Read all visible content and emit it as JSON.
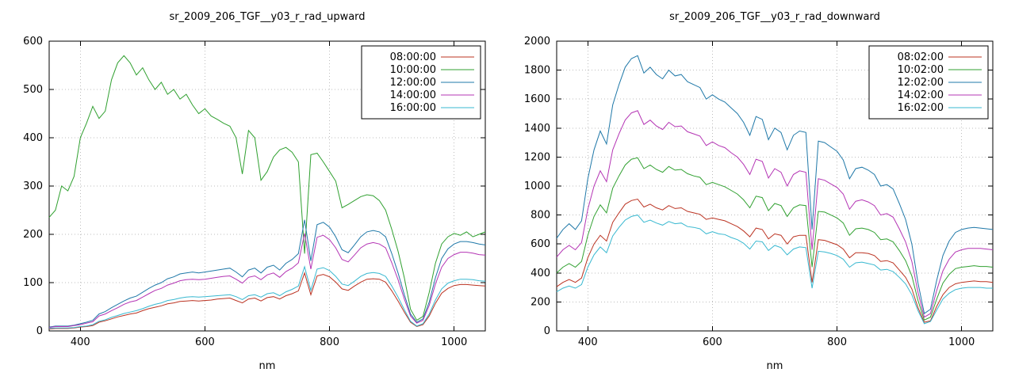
{
  "page": {
    "background_color": "#ffffff"
  },
  "chart_data": [
    {
      "type": "line",
      "title": "sr_2009_206_TGF__y03_r_rad_upward",
      "xlabel": "nm",
      "ylabel": "",
      "xlim": [
        350,
        1050
      ],
      "ylim": [
        0,
        600
      ],
      "xticks": [
        400,
        600,
        800,
        1000
      ],
      "yticks": [
        0,
        100,
        200,
        300,
        400,
        500,
        600
      ],
      "grid": true,
      "legend_position": "top-right",
      "x": [
        350,
        360,
        370,
        380,
        390,
        400,
        410,
        420,
        430,
        440,
        450,
        460,
        470,
        480,
        490,
        500,
        510,
        520,
        530,
        540,
        550,
        560,
        570,
        580,
        590,
        600,
        610,
        620,
        630,
        640,
        650,
        660,
        670,
        680,
        690,
        700,
        710,
        720,
        730,
        740,
        750,
        760,
        770,
        780,
        790,
        800,
        810,
        820,
        830,
        840,
        850,
        860,
        870,
        880,
        890,
        900,
        910,
        920,
        930,
        940,
        950,
        960,
        970,
        980,
        990,
        1000,
        1010,
        1020,
        1030,
        1040,
        1050
      ],
      "series": [
        {
          "name": "08:00:00",
          "color": "#bb3322",
          "values": [
            4,
            5,
            5,
            5,
            6,
            8,
            9,
            11,
            18,
            21,
            25,
            29,
            32,
            35,
            37,
            42,
            46,
            49,
            52,
            56,
            58,
            61,
            62,
            63,
            62,
            63,
            64,
            66,
            67,
            68,
            63,
            58,
            66,
            68,
            62,
            69,
            71,
            66,
            73,
            77,
            83,
            120,
            75,
            114,
            117,
            112,
            101,
            87,
            84,
            93,
            101,
            107,
            108,
            107,
            101,
            83,
            62,
            39,
            18,
            9,
            13,
            31,
            57,
            78,
            88,
            94,
            96,
            96,
            95,
            94,
            93
          ]
        },
        {
          "name": "10:00:00",
          "color": "#30a030",
          "values": [
            235,
            250,
            300,
            290,
            320,
            400,
            430,
            465,
            440,
            455,
            520,
            555,
            570,
            555,
            530,
            545,
            520,
            500,
            515,
            490,
            500,
            480,
            490,
            468,
            450,
            460,
            445,
            438,
            430,
            424,
            400,
            325,
            415,
            400,
            312,
            330,
            360,
            375,
            380,
            370,
            350,
            160,
            365,
            368,
            350,
            330,
            310,
            255,
            262,
            270,
            278,
            282,
            280,
            270,
            250,
            210,
            165,
            110,
            45,
            22,
            30,
            80,
            140,
            180,
            195,
            202,
            198,
            205,
            195,
            200,
            205
          ]
        },
        {
          "name": "12:00:00",
          "color": "#1f78a8",
          "values": [
            8,
            10,
            10,
            10,
            12,
            15,
            18,
            22,
            35,
            40,
            48,
            55,
            62,
            68,
            72,
            80,
            88,
            95,
            100,
            108,
            112,
            118,
            120,
            122,
            120,
            122,
            124,
            126,
            128,
            130,
            122,
            112,
            126,
            130,
            120,
            132,
            136,
            126,
            140,
            148,
            160,
            230,
            145,
            220,
            225,
            215,
            195,
            168,
            162,
            178,
            195,
            205,
            208,
            205,
            195,
            160,
            120,
            75,
            35,
            18,
            25,
            60,
            110,
            150,
            170,
            180,
            185,
            185,
            183,
            180,
            178
          ]
        },
        {
          "name": "14:00:00",
          "color": "#b434b4",
          "values": [
            7,
            9,
            9,
            9,
            11,
            13,
            16,
            19,
            31,
            35,
            42,
            48,
            55,
            60,
            63,
            70,
            77,
            84,
            88,
            95,
            99,
            104,
            106,
            107,
            106,
            107,
            109,
            111,
            113,
            114,
            107,
            99,
            111,
            114,
            106,
            116,
            120,
            111,
            123,
            130,
            141,
            202,
            128,
            194,
            198,
            189,
            172,
            148,
            143,
            157,
            172,
            180,
            183,
            180,
            172,
            141,
            106,
            66,
            31,
            16,
            22,
            53,
            97,
            132,
            150,
            158,
            163,
            163,
            161,
            158,
            157
          ]
        },
        {
          "name": "16:00:00",
          "color": "#38b8d0",
          "values": [
            5,
            6,
            6,
            6,
            7,
            9,
            10,
            13,
            20,
            23,
            28,
            32,
            36,
            39,
            42,
            46,
            51,
            55,
            58,
            63,
            65,
            68,
            70,
            71,
            70,
            71,
            72,
            73,
            74,
            75,
            71,
            65,
            73,
            75,
            70,
            77,
            79,
            73,
            81,
            86,
            93,
            133,
            84,
            128,
            131,
            125,
            113,
            97,
            94,
            103,
            113,
            119,
            121,
            119,
            113,
            93,
            70,
            44,
            20,
            10,
            15,
            35,
            64,
            87,
            99,
            104,
            107,
            107,
            106,
            104,
            103
          ]
        }
      ]
    },
    {
      "type": "line",
      "title": "sr_2009_206_TGF__y03_r_rad_downward",
      "xlabel": "nm",
      "ylabel": "",
      "xlim": [
        350,
        1050
      ],
      "ylim": [
        0,
        2000
      ],
      "xticks": [
        400,
        600,
        800,
        1000
      ],
      "yticks": [
        0,
        200,
        400,
        600,
        800,
        1000,
        1200,
        1400,
        1600,
        1800,
        2000
      ],
      "grid": true,
      "legend_position": "top-right",
      "x": [
        350,
        360,
        370,
        380,
        390,
        400,
        410,
        420,
        430,
        440,
        450,
        460,
        470,
        480,
        490,
        500,
        510,
        520,
        530,
        540,
        550,
        560,
        570,
        580,
        590,
        600,
        610,
        620,
        630,
        640,
        650,
        660,
        670,
        680,
        690,
        700,
        710,
        720,
        730,
        740,
        750,
        760,
        770,
        780,
        790,
        800,
        810,
        820,
        830,
        840,
        850,
        860,
        870,
        880,
        890,
        900,
        910,
        920,
        930,
        940,
        950,
        960,
        970,
        980,
        990,
        1000,
        1010,
        1020,
        1030,
        1040,
        1050
      ],
      "series": [
        {
          "name": "08:02:00",
          "color": "#bb3322",
          "values": [
            305,
            335,
            355,
            335,
            365,
            505,
            600,
            660,
            620,
            750,
            815,
            875,
            900,
            910,
            855,
            875,
            850,
            835,
            865,
            845,
            850,
            825,
            815,
            805,
            770,
            780,
            770,
            760,
            740,
            720,
            690,
            650,
            710,
            700,
            635,
            670,
            660,
            600,
            650,
            660,
            660,
            335,
            630,
            625,
            610,
            595,
            565,
            505,
            540,
            540,
            535,
            520,
            480,
            485,
            470,
            420,
            370,
            290,
            160,
            60,
            70,
            170,
            250,
            300,
            325,
            335,
            340,
            345,
            340,
            340,
            335
          ]
        },
        {
          "name": "10:02:00",
          "color": "#30a030",
          "values": [
            400,
            440,
            465,
            440,
            480,
            660,
            790,
            870,
            815,
            985,
            1070,
            1145,
            1185,
            1195,
            1120,
            1145,
            1115,
            1095,
            1135,
            1110,
            1115,
            1085,
            1070,
            1060,
            1010,
            1025,
            1010,
            995,
            970,
            945,
            905,
            850,
            930,
            920,
            830,
            880,
            865,
            790,
            850,
            870,
            865,
            440,
            825,
            820,
            800,
            780,
            745,
            660,
            705,
            710,
            700,
            680,
            630,
            635,
            615,
            555,
            485,
            380,
            210,
            75,
            95,
            220,
            330,
            390,
            430,
            440,
            445,
            450,
            445,
            445,
            440
          ]
        },
        {
          "name": "12:02:00",
          "color": "#1f78a8",
          "values": [
            640,
            700,
            740,
            700,
            760,
            1050,
            1250,
            1380,
            1290,
            1560,
            1700,
            1820,
            1880,
            1900,
            1780,
            1820,
            1770,
            1740,
            1800,
            1760,
            1770,
            1720,
            1700,
            1680,
            1600,
            1630,
            1600,
            1580,
            1540,
            1500,
            1440,
            1350,
            1480,
            1460,
            1320,
            1400,
            1370,
            1250,
            1350,
            1380,
            1370,
            700,
            1310,
            1300,
            1270,
            1240,
            1180,
            1050,
            1120,
            1130,
            1110,
            1080,
            1000,
            1010,
            980,
            880,
            770,
            600,
            330,
            120,
            150,
            350,
            520,
            620,
            680,
            700,
            710,
            715,
            710,
            705,
            700
          ]
        },
        {
          "name": "14:02:00",
          "color": "#b434b4",
          "values": [
            510,
            560,
            590,
            560,
            610,
            840,
            1000,
            1105,
            1030,
            1250,
            1360,
            1455,
            1505,
            1520,
            1425,
            1455,
            1415,
            1390,
            1440,
            1410,
            1415,
            1375,
            1360,
            1345,
            1280,
            1305,
            1280,
            1265,
            1230,
            1200,
            1150,
            1080,
            1185,
            1170,
            1055,
            1120,
            1095,
            1000,
            1080,
            1105,
            1095,
            560,
            1050,
            1040,
            1015,
            990,
            945,
            840,
            895,
            905,
            890,
            865,
            800,
            810,
            785,
            705,
            615,
            480,
            265,
            95,
            120,
            280,
            415,
            495,
            545,
            560,
            570,
            570,
            570,
            565,
            560
          ]
        },
        {
          "name": "16:02:00",
          "color": "#38b8d0",
          "values": [
            270,
            295,
            310,
            295,
            320,
            440,
            525,
            580,
            540,
            655,
            715,
            765,
            790,
            800,
            750,
            765,
            745,
            730,
            755,
            740,
            745,
            720,
            715,
            705,
            670,
            685,
            670,
            665,
            645,
            630,
            605,
            565,
            620,
            615,
            555,
            590,
            575,
            525,
            565,
            580,
            575,
            295,
            550,
            545,
            535,
            520,
            495,
            440,
            470,
            475,
            465,
            455,
            420,
            425,
            410,
            370,
            325,
            250,
            140,
            50,
            65,
            145,
            220,
            260,
            285,
            295,
            300,
            300,
            300,
            295,
            295
          ]
        }
      ]
    }
  ]
}
